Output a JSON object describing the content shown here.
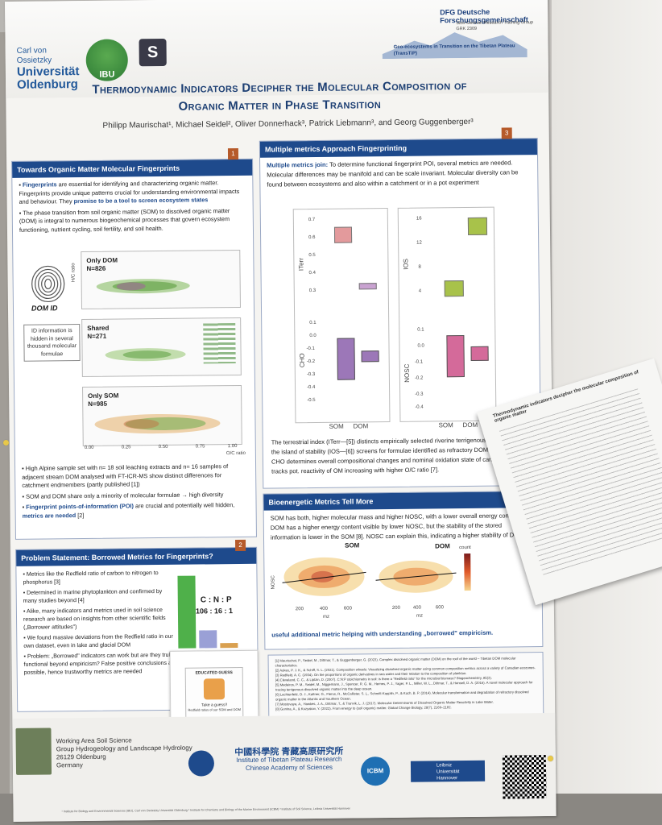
{
  "header": {
    "university": [
      "Carl von Ossietzky",
      "Universität",
      "Oldenburg"
    ],
    "ibu": "IBU",
    "s_logo": "S",
    "dfg": "DFG Deutsche Forschungsgemeinschaft",
    "grk": "Sino-German Research Training Group GRK 2309",
    "tip": "Geo-ecosystems in Transition on the Tibetan Plateau (TransTiP)",
    "title_line1": "Thermodynamic Indicators Decipher the Molecular Composition of",
    "title_line2": "Organic Matter in Phase Transition",
    "authors": "Philipp Maurischat¹, Michael Seidel², Oliver Donnerhack³, Patrick Liebmann³, and Georg Guggenberger³"
  },
  "panel1": {
    "heading": "Towards Organic Matter Molecular Fingerprints",
    "num": "1",
    "p1_bold": "Fingerprints",
    "p1": " are essential for identifying and characterizing organic matter. Fingerprints provide unique patterns crucial for understanding environmental impacts and behaviour. They ",
    "p1_bold2": "promise to be a tool to screen ecosystem states",
    "p2": "The phase transition from soil organic matter (SOM) to dissolved organic matter (DOM) is integral to numerous biogeochemical processes that govern ecosystem functioning, nutrient cycling, soil fertility, and soil health.",
    "dom_id": "DOM ID",
    "note": "ID information is hidden in several thousand molecular formulae",
    "plot_top": {
      "label": "Only DOM",
      "n": "N=826",
      "ylabel": "H/C ratio"
    },
    "plot_mid": {
      "label": "Shared",
      "n": "N=271"
    },
    "plot_bot": {
      "label": "Only SOM",
      "n": "N=985",
      "xlabel": "O/C ratio"
    },
    "ticks_x": [
      "0.00",
      "0.25",
      "0.50",
      "0.75",
      "1.00"
    ],
    "b1": "High Alpine sample set with n= 18 soil leaching extracts and n= 16 samples of adjacent stream DOM analysed with FT-ICR-MS show distinct differences for catchment endmembers (partly published [1])",
    "b2": "SOM and DOM share only a minority of molecular formulae → high diversity",
    "b3_bold": "Fingerprint points-of-information (POI)",
    "b3": " are crucial and potentially well hidden, ",
    "b3_bold2": "metrics are needed",
    "b3_end": " [2]"
  },
  "panel2": {
    "heading": "Problem Statement: Borrowed Metrics for Fingerprints?",
    "num": "2",
    "b1": "Metrics like the Redfield ratio of carbon to nitrogen to phosphorus [3]",
    "b2": "Determined in marine phytoplankton and confirmed by many studies beyond [4]",
    "b3": "Alike, many indicators and metrics used in soil science research are based on insights from other scientific fields („Borrower attitudes\")",
    "b4": "We found massive deviations from the Redfield ratio in our own dataset, even in lake and glacial DOM",
    "b5": "Problem: „Borrowed\" indicators can work but are they truly functional beyond empiricism? False positive conclusions are possible, hence trustworthy metrics are needed",
    "cnp": "C : N : P",
    "ratio": "106 : 16 : 1",
    "card_title": "EDUCATED GUESS",
    "card_sub": "Take a guess!!",
    "card_foot": "Redfield ratios of our SOM and DOM"
  },
  "panel3": {
    "heading": "Multiple metrics Approach Fingerprinting",
    "num": "3",
    "intro_bold": "Multiple metrics join:",
    "intro": " To determine functional fingerprint POI, several metrics are needed. Molecular differences may be manifold and can be scale invariant. Molecular diversity can be found between ecosystems and also within a catchment or in a pot experiment",
    "box_left": {
      "top_label": "ITerr",
      "bottom_label": "CHO",
      "xcats": [
        "SOM",
        "DOM"
      ],
      "top_ticks": [
        "0.7",
        "0.6",
        "0.5",
        "0.4",
        "0.3"
      ],
      "bot_ticks": [
        "0.1",
        "0.0",
        "-0.1",
        "-0.2",
        "-0.3",
        "-0.4",
        "-0.5"
      ]
    },
    "box_right": {
      "top_label": "IOS",
      "bottom_label": "NOSC",
      "xcats": [
        "SOM",
        "DOM"
      ],
      "top_ticks": [
        "16",
        "12",
        "8",
        "4"
      ],
      "bot_ticks": [
        "0.1",
        "0.0",
        "-0.1",
        "-0.2",
        "-0.3",
        "-0.4"
      ]
    },
    "desc": "The terrestrial index (ITerr—[5]) distincts empirically selected riverine terrigenous formulae, while the island of stability (IOS—[6]) screens for formulae identified as refractory DOM in the deep sea. CHO determines overall compositional changes and nominal oxidation state of carbon (NOSC) tracks pot. reactivity of OM increasing with higher O/C ratio [7]."
  },
  "panel4": {
    "heading": "Bioenergetic Metrics Tell More",
    "text": "SOM has both, higher molecular mass and higher NOSC, with a lower overall energy content. DOM has a higher energy content visible by lower NOSC, but the stability of the stored information is lower in the SOM [8]. NOSC can explain this, indicating a higher stability of DOM proposed by IOS. NOSC is a",
    "text_end": "useful additional metric helping with understanding „borrowed\" empiricism.",
    "plot_som": "SOM",
    "plot_dom": "DOM",
    "xlabel": "mz",
    "ylabel": "NOSC",
    "xticks": [
      "200",
      "400",
      "600"
    ],
    "legend": "count"
  },
  "refs": [
    "[1] Maurischat, P., Seidel, M., Dittmar, T., & Guggenberger, G. (2023). Complex dissolved organic matter (DOM) on the roof of the world – Tibetan DOM molecular characteristics.",
    "[2] Aukes, P. J. K., & Schiff, S. L. (2021). Composition wheels: Visualizing dissolved organic matter using common composition metrics across a variety of Canadian ecozones.",
    "[3] Redfield, A. C. (1934). On the proportions of organic derivatives in sea water and their relation to the composition of plankton.",
    "[4] Cleveland, C. C., & Liptzin, D. (2007). C:N:P stoichiometry in soil: is there a \"Redfield ratio\" for the microbial biomass? Biogeochemistry, 85(3).",
    "[5] Medeiros, P. M., Seidel, M., Niggemann, J., Spencer, R. G. M., Hernes, P. J., Yager, P. L., Miller, W. L., Dittmar, T., & Hansell, D. A. (2016). A novel molecular approach for tracing terrigenous dissolved organic matter into the deep ocean.",
    "[6] Lechtenfeld, O. J., Kattner, G., Flerus, R., McCallister, S. L., Schmitt-Kopplin, P., & Koch, B. P. (2014). Molecular transformation and degradation of refractory dissolved organic matter in the Atlantic and Southern Ocean.",
    "[7] Mostovaya, A., Hawkes, J. A., Dittmar, T., & Tranvik, L. J. (2017). Molecular Determinants of Dissolved Organic Matter Reactivity in Lake Water.",
    "[8] Gunina, A., & Kuzyakov, Y. (2022). From energy to (soil organic) matter. Global Change Biology, 28(7), 2169–2182."
  ],
  "footer": {
    "work1": "Working Area Soil Science",
    "work2": "Group Hydrogeology and Landscape Hydrology",
    "work3": "26129 Oldenburg",
    "work4": "Germany",
    "itp_cn": "中國科學院 青藏高原研究所",
    "itp1": "Institute of Tibetan Plateau Research",
    "itp2": "Chinese Academy of Sciences",
    "icbm": "ICBM",
    "leibniz": [
      "Leibniz",
      "Universität",
      "Hannover"
    ],
    "affil": "¹ Institute for Biology and Environmental Sciences (IBU), Carl von Ossietzky Universität Oldenburg   ² Institute for Chemistry and Biology of the Marine Environment (ICBM)   ³ Institute of Soil Science, Leibniz Universität Hannover"
  },
  "handout": {
    "title": "Thermodynamic indicators decipher the molecular composition of organic matter"
  },
  "colors": {
    "header_blue": "#1e4a8c",
    "accent": "#b65a2a",
    "box_pink": "#d46a9a",
    "box_purple": "#9c77b8",
    "box_green": "#a8c24a"
  }
}
